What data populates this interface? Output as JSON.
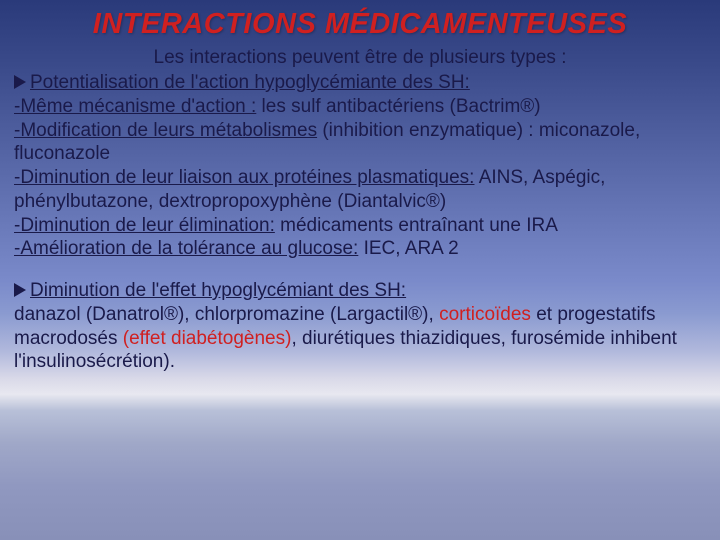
{
  "title": "INTERACTIONS MÉDICAMENTEUSES",
  "intro": "Les interactions peuvent être de plusieurs types :",
  "section1_title": "Potentialisation de l'action hypoglycémiante des SH:",
  "s1_l1a": "-Même mécanisme d'action :",
  "s1_l1b": " les sulf antibactériens (Bactrim®)",
  "s1_l2a": "-Modification de leurs métabolismes",
  "s1_l2b": " (inhibition enzymatique) : miconazole, fluconazole",
  "s1_l3a": "-Diminution de leur liaison aux protéines plasmatiques:",
  "s1_l3b": " AINS, Aspégic, phénylbutazone, dextropropoxyphène (Diantalvic®)",
  "s1_l4a": "-Diminution de leur élimination:",
  "s1_l4b": " médicaments entraînant une IRA",
  "s1_l5a": "-Amélioration de la tolérance au glucose:",
  "s1_l5b": " IEC, ARA 2",
  "section2_title": "Diminution de l'effet hypoglycémiant des SH:",
  "s2_a": " danazol (Danatrol®), chlorpromazine (Largactil®), ",
  "s2_b": "corticoïdes",
  "s2_c": " et progestatifs macrodosés ",
  "s2_d": "(effet diabétogènes)",
  "s2_e": ", diurétiques thiazidiques, furosémide inhibent l'insulinosécrétion).",
  "colors": {
    "title_color": "#d02020",
    "body_color": "#1a1a4a",
    "highlight_color": "#d02020"
  }
}
